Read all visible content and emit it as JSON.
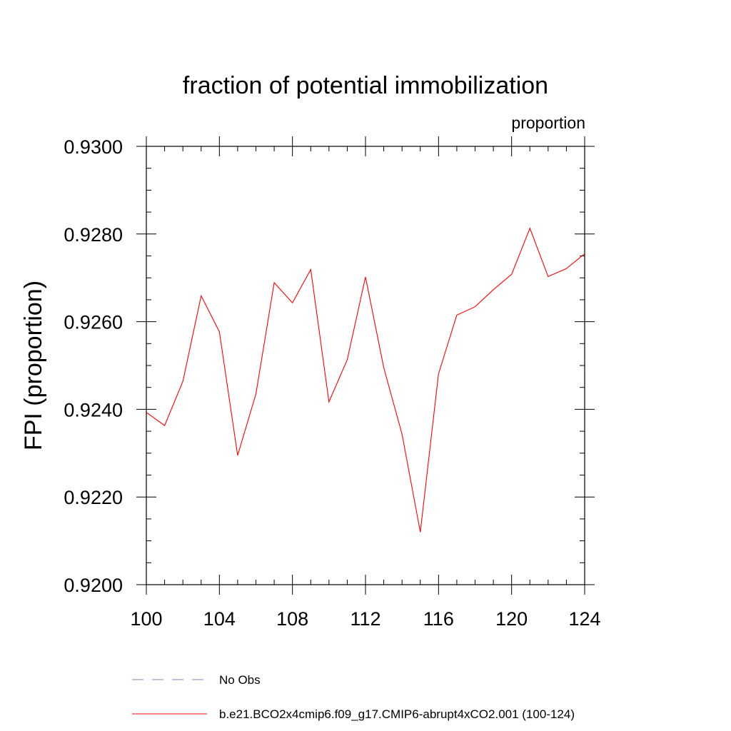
{
  "chart_data": {
    "type": "line",
    "title": "fraction of potential immobilization",
    "units_label": "proportion",
    "ylabel": "FPI  (proportion)",
    "xlabel": "",
    "xlim": [
      100,
      124
    ],
    "ylim": [
      0.92,
      0.93
    ],
    "x_ticks": [
      100,
      104,
      108,
      112,
      116,
      120,
      124
    ],
    "x_tick_labels": [
      "100",
      "104",
      "108",
      "112",
      "116",
      "120",
      "124"
    ],
    "y_ticks": [
      0.92,
      0.922,
      0.924,
      0.926,
      0.928,
      0.93
    ],
    "y_tick_labels": [
      "0.9200",
      "0.9220",
      "0.9240",
      "0.9260",
      "0.9280",
      "0.9300"
    ],
    "x_minor_step": 1,
    "y_minor_step": 0.0005,
    "grid": false,
    "legend_position": "bottom",
    "series": [
      {
        "name": "b.e21.BCO2x4cmip6.f09_g17.CMIP6-abrupt4xCO2.001 (100-124)",
        "color": "#ff0000",
        "style": "solid",
        "x": [
          100,
          101,
          102,
          103,
          104,
          105,
          106,
          107,
          108,
          109,
          110,
          111,
          112,
          113,
          114,
          115,
          116,
          117,
          118,
          119,
          120,
          121,
          122,
          123,
          124
        ],
        "values": [
          0.92393,
          0.92363,
          0.92464,
          0.92659,
          0.92577,
          0.92295,
          0.92435,
          0.92689,
          0.92643,
          0.92719,
          0.92417,
          0.92513,
          0.92702,
          0.92495,
          0.92343,
          0.9212,
          0.92481,
          0.92615,
          0.92634,
          0.92673,
          0.92708,
          0.92813,
          0.92703,
          0.92721,
          0.92755
        ]
      }
    ],
    "legend": [
      {
        "label": "No Obs",
        "color": "#7f7fbf",
        "style": "dashed"
      },
      {
        "label": "b.e21.BCO2x4cmip6.f09_g17.CMIP6-abrupt4xCO2.001 (100-124)",
        "color": "#ff0000",
        "style": "solid"
      }
    ]
  }
}
